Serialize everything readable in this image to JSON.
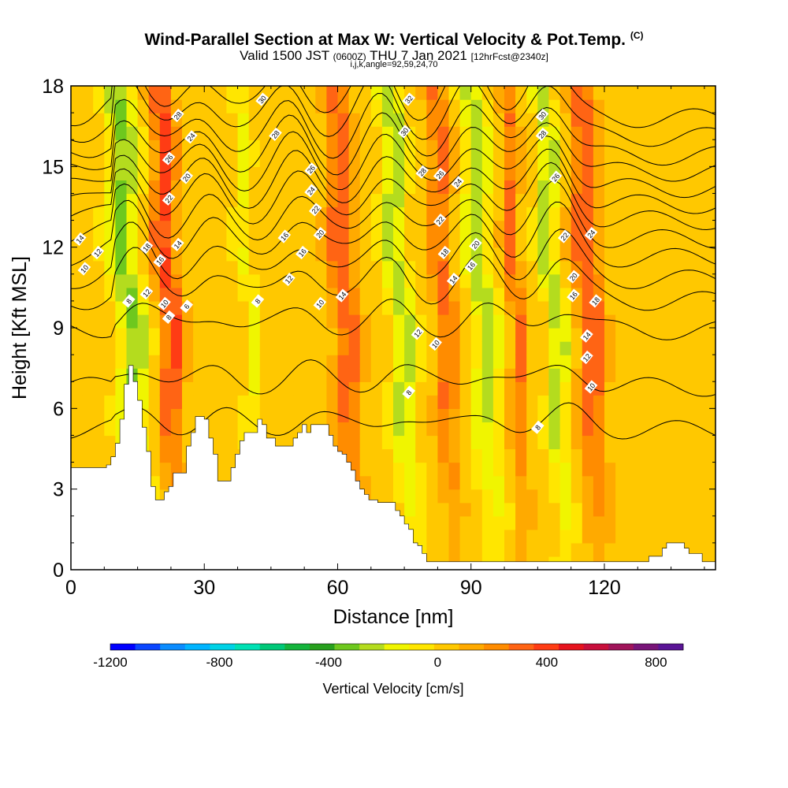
{
  "title": {
    "main": "Wind-Parallel Section at Max W: Vertical Velocity & Pot.Temp.",
    "copyright": "(C)",
    "valid_prefix": "Valid 1500 JST",
    "valid_utc": "(0600Z)",
    "valid_date": "THU 7 Jan 2021",
    "fcst": "[12hrFcst@2340z]",
    "indices": "i,j,k,angle=92,59,24,70"
  },
  "chart_data": {
    "type": "heatmap",
    "xlabel": "Distance [nm]",
    "ylabel": "Height [Kft MSL]",
    "xlim": [
      0,
      145
    ],
    "ylim": [
      0,
      18
    ],
    "xticks": [
      0,
      30,
      60,
      90,
      120
    ],
    "yticks": [
      0,
      3,
      6,
      9,
      12,
      15,
      18
    ],
    "colorbar": {
      "label": "Vertical Velocity [cm/s]",
      "tick_labels": [
        -1200,
        -800,
        -400,
        0,
        400,
        800
      ],
      "range": [
        -1200,
        900
      ],
      "step": 100,
      "colors": [
        "#0000ff",
        "#0a46ff",
        "#0a8cff",
        "#00b4ff",
        "#00d2e6",
        "#00e1b4",
        "#00c878",
        "#14b43c",
        "#28a01e",
        "#6ec81e",
        "#b4dc1e",
        "#f0f500",
        "#ffe600",
        "#ffc800",
        "#ffaa00",
        "#ff8c00",
        "#ff6414",
        "#ff3c14",
        "#e6141e",
        "#c80f3c",
        "#a0145a",
        "#781478",
        "#5a1496"
      ]
    },
    "terrain_kft": [
      3.8,
      3.8,
      3.8,
      3.8,
      3.8,
      3.8,
      3.8,
      3.8,
      3.9,
      4.2,
      4.7,
      5.6,
      6.9,
      7.6,
      7.0,
      6.3,
      5.3,
      4.4,
      3.1,
      2.6,
      2.6,
      2.9,
      3.1,
      3.6,
      3.6,
      3.6,
      4.6,
      5.1,
      5.7,
      5.7,
      5.6,
      4.9,
      4.3,
      3.3,
      3.3,
      3.3,
      3.8,
      4.3,
      4.8,
      5.1,
      5.1,
      5.1,
      5.6,
      5.4,
      4.9,
      4.9,
      4.6,
      4.6,
      4.6,
      4.6,
      4.9,
      5.1,
      5.4,
      5.1,
      5.4,
      5.4,
      5.4,
      5.4,
      5.0,
      4.6,
      4.4,
      4.3,
      4.0,
      3.7,
      3.3,
      3.0,
      2.8,
      2.6,
      2.6,
      2.5,
      2.5,
      2.5,
      2.5,
      2.2,
      2.0,
      1.7,
      1.5,
      1.0,
      0.9,
      0.6,
      0.3,
      0.3,
      0.3,
      0.3,
      0.3,
      0.3,
      0.3,
      0.3,
      0.3,
      0.3,
      0.3,
      0.3,
      0.3,
      0.3,
      0.3,
      0.3,
      0.3,
      0.3,
      0.3,
      0.3,
      0.3,
      0.3,
      0.3,
      0.3,
      0.3,
      0.3,
      0.3,
      0.3,
      0.3,
      0.3,
      0.3,
      0.3,
      0.3,
      0.3,
      0.3,
      0.3,
      0.3,
      0.3,
      0.3,
      0.3,
      0.3,
      0.3,
      0.3,
      0.3,
      0.3,
      0.3,
      0.3,
      0.3,
      0.3,
      0.3,
      0.5,
      0.5,
      0.5,
      0.8,
      1.0,
      1.0,
      1.0,
      1.0,
      0.8,
      0.6,
      0.6,
      0.6,
      0.3,
      0.3,
      0.3,
      0.3
    ],
    "w_bands_cm_s": [
      {
        "x_low": 11,
        "x_high": 19,
        "w": -350
      },
      {
        "x_low": 20,
        "x_high": 27,
        "w": 400
      },
      {
        "x_low": 40,
        "x_high": 44,
        "w": -150
      },
      {
        "x_low": 59,
        "x_high": 67,
        "w": 330
      },
      {
        "x_low": 73,
        "x_high": 79,
        "w": -330
      },
      {
        "x_low": 82,
        "x_high": 89,
        "w": 300
      },
      {
        "x_low": 91,
        "x_high": 98,
        "w": -300
      },
      {
        "x_low": 99,
        "x_high": 104,
        "w": 280
      },
      {
        "x_low": 108,
        "x_high": 113,
        "w": -320
      },
      {
        "x_low": 114,
        "x_high": 122,
        "w": 360
      }
    ],
    "theta_contours": {
      "levels": [
        6,
        8,
        10,
        12,
        14,
        16,
        18,
        20,
        22,
        24,
        26,
        28,
        30,
        32
      ],
      "base_kft": [
        [
          6,
          5.2
        ],
        [
          8,
          6.8
        ],
        [
          10,
          8.9
        ],
        [
          12,
          10.0
        ],
        [
          14,
          10.8
        ],
        [
          16,
          11.6
        ],
        [
          18,
          12.3
        ],
        [
          20,
          13.0
        ],
        [
          22,
          13.6
        ],
        [
          24,
          14.2
        ],
        [
          26,
          14.8
        ],
        [
          28,
          15.4
        ],
        [
          30,
          16.1
        ],
        [
          32,
          16.8
        ]
      ]
    },
    "contour_labels": [
      {
        "text": "28",
        "x": 24,
        "y": 16.9
      },
      {
        "text": "24",
        "x": 27,
        "y": 16.1
      },
      {
        "text": "26",
        "x": 22,
        "y": 15.3
      },
      {
        "text": "20",
        "x": 26,
        "y": 14.6
      },
      {
        "text": "22",
        "x": 22,
        "y": 13.8
      },
      {
        "text": "14",
        "x": 24,
        "y": 12.1
      },
      {
        "text": "18",
        "x": 17,
        "y": 12.0
      },
      {
        "text": "16",
        "x": 20,
        "y": 11.5
      },
      {
        "text": "12",
        "x": 17,
        "y": 10.3
      },
      {
        "text": "10",
        "x": 21,
        "y": 9.9
      },
      {
        "text": "8",
        "x": 13,
        "y": 10.0
      },
      {
        "text": "8",
        "x": 22,
        "y": 9.4
      },
      {
        "text": "6",
        "x": 26,
        "y": 9.8
      },
      {
        "text": "14",
        "x": 2,
        "y": 12.3
      },
      {
        "text": "12",
        "x": 6,
        "y": 11.8
      },
      {
        "text": "10",
        "x": 3,
        "y": 11.2
      },
      {
        "text": "30",
        "x": 43,
        "y": 17.5
      },
      {
        "text": "28",
        "x": 46,
        "y": 16.2
      },
      {
        "text": "26",
        "x": 54,
        "y": 14.9
      },
      {
        "text": "24",
        "x": 54,
        "y": 14.1
      },
      {
        "text": "22",
        "x": 55,
        "y": 13.4
      },
      {
        "text": "20",
        "x": 56,
        "y": 12.5
      },
      {
        "text": "16",
        "x": 48,
        "y": 12.4
      },
      {
        "text": "16",
        "x": 52,
        "y": 11.8
      },
      {
        "text": "12",
        "x": 49,
        "y": 10.8
      },
      {
        "text": "14",
        "x": 61,
        "y": 10.2
      },
      {
        "text": "10",
        "x": 56,
        "y": 9.9
      },
      {
        "text": "8",
        "x": 42,
        "y": 10.0
      },
      {
        "text": "32",
        "x": 76,
        "y": 17.5
      },
      {
        "text": "30",
        "x": 75,
        "y": 16.3
      },
      {
        "text": "28",
        "x": 79,
        "y": 14.8
      },
      {
        "text": "26",
        "x": 83,
        "y": 14.7
      },
      {
        "text": "24",
        "x": 87,
        "y": 14.4
      },
      {
        "text": "22",
        "x": 83,
        "y": 13.0
      },
      {
        "text": "18",
        "x": 84,
        "y": 11.8
      },
      {
        "text": "14",
        "x": 86,
        "y": 10.8
      },
      {
        "text": "20",
        "x": 91,
        "y": 12.1
      },
      {
        "text": "16",
        "x": 90,
        "y": 11.3
      },
      {
        "text": "12",
        "x": 78,
        "y": 8.8
      },
      {
        "text": "10",
        "x": 82,
        "y": 8.4
      },
      {
        "text": "8",
        "x": 76,
        "y": 6.6
      },
      {
        "text": "30",
        "x": 106,
        "y": 16.9
      },
      {
        "text": "28",
        "x": 106,
        "y": 16.2
      },
      {
        "text": "26",
        "x": 109,
        "y": 14.6
      },
      {
        "text": "22",
        "x": 111,
        "y": 12.4
      },
      {
        "text": "24",
        "x": 117,
        "y": 12.5
      },
      {
        "text": "20",
        "x": 113,
        "y": 10.9
      },
      {
        "text": "16",
        "x": 113,
        "y": 10.2
      },
      {
        "text": "18",
        "x": 118,
        "y": 10.0
      },
      {
        "text": "14",
        "x": 116,
        "y": 8.7
      },
      {
        "text": "12",
        "x": 116,
        "y": 7.9
      },
      {
        "text": "10",
        "x": 117,
        "y": 6.8
      },
      {
        "text": "8",
        "x": 105,
        "y": 5.3
      }
    ]
  }
}
